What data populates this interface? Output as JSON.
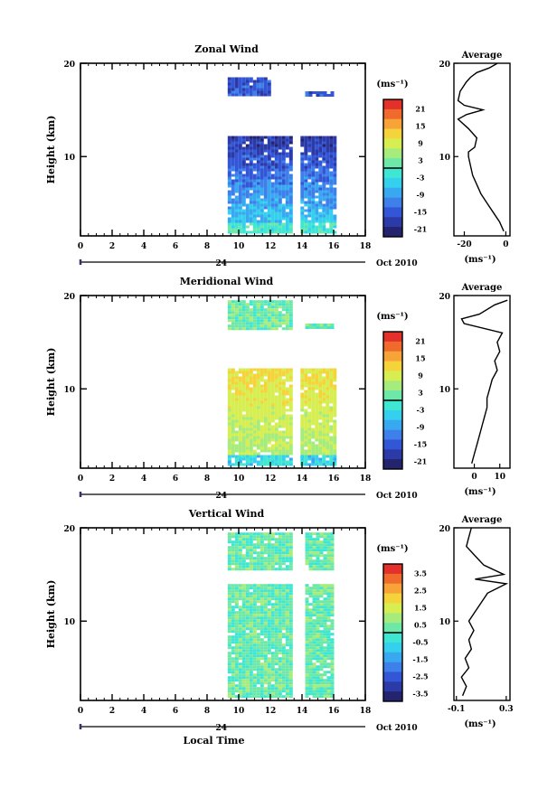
{
  "colorbar": {
    "colors": [
      "#24246e",
      "#2c3aa8",
      "#3356d6",
      "#3e80ea",
      "#38a9f0",
      "#34d0ee",
      "#3fe6d2",
      "#6de8a8",
      "#a6ec7c",
      "#d7ee52",
      "#f4d43a",
      "#f7a338",
      "#f06a2e",
      "#e3302a"
    ]
  },
  "chart_data": [
    {
      "type": "heatmap",
      "title": "Zonal Wind",
      "ylabel": "Height (km)",
      "xlim": [
        0,
        18
      ],
      "ylim": [
        1.5,
        20
      ],
      "xticks": [
        "0",
        "2",
        "4",
        "6",
        "8",
        "10",
        "12",
        "14",
        "16",
        "18"
      ],
      "yticks": [
        "20",
        "10"
      ],
      "date_axis": {
        "label": "24",
        "right_label": "Oct 2010"
      },
      "colorbar": {
        "unit": "(ms⁻¹)",
        "ticks": [
          "21",
          "15",
          "9",
          "3",
          "-3",
          "-9",
          "-15",
          "-21"
        ],
        "range": [
          -24,
          24
        ]
      },
      "data_blocks": [
        {
          "x": [
            9.3,
            13.2
          ],
          "y": [
            1.8,
            12.2
          ]
        },
        {
          "x": [
            13.9,
            16.0
          ],
          "y": [
            1.8,
            12.2
          ]
        },
        {
          "x": [
            9.3,
            12.0
          ],
          "y": [
            16.5,
            18.5
          ]
        },
        {
          "x": [
            14.2,
            16.0
          ],
          "y": [
            16.5,
            17.0
          ]
        }
      ],
      "profile": {
        "title": "Average",
        "xlim": [
          -25,
          2
        ],
        "xticks": [
          "-20",
          "0"
        ],
        "xunit": "(ms⁻¹)",
        "yticks": [
          "20",
          "10"
        ],
        "points": [
          [
            -1,
            2
          ],
          [
            -3,
            3
          ],
          [
            -6,
            4
          ],
          [
            -9,
            5
          ],
          [
            -12,
            6
          ],
          [
            -14,
            7
          ],
          [
            -16,
            8
          ],
          [
            -17,
            9
          ],
          [
            -18,
            10
          ],
          [
            -18,
            10.5
          ],
          [
            -15,
            11
          ],
          [
            -14,
            12
          ],
          [
            -18,
            13
          ],
          [
            -23,
            14
          ],
          [
            -19,
            14.5
          ],
          [
            -11,
            15
          ],
          [
            -20,
            15.5
          ],
          [
            -23,
            16
          ],
          [
            -22,
            17
          ],
          [
            -19,
            18
          ],
          [
            -17,
            18.5
          ],
          [
            -14,
            19
          ],
          [
            -8,
            19.5
          ],
          [
            -4,
            20
          ]
        ]
      }
    },
    {
      "type": "heatmap",
      "title": "Meridional Wind",
      "ylabel": "Height (km)",
      "xlim": [
        0,
        18
      ],
      "ylim": [
        1.5,
        20
      ],
      "xticks": [
        "0",
        "2",
        "4",
        "6",
        "8",
        "10",
        "12",
        "14",
        "16",
        "18"
      ],
      "yticks": [
        "20",
        "10"
      ],
      "date_axis": {
        "label": "24",
        "right_label": "Oct 2010"
      },
      "colorbar": {
        "unit": "(ms⁻¹)",
        "ticks": [
          "21",
          "15",
          "9",
          "3",
          "-3",
          "-9",
          "-15",
          "-21"
        ],
        "range": [
          -24,
          24
        ]
      },
      "data_blocks": [
        {
          "x": [
            9.3,
            13.2
          ],
          "y": [
            1.8,
            12.2
          ]
        },
        {
          "x": [
            13.9,
            16.0
          ],
          "y": [
            1.8,
            12.2
          ]
        },
        {
          "x": [
            9.3,
            13.2
          ],
          "y": [
            16.5,
            19.5
          ]
        },
        {
          "x": [
            14.2,
            16.0
          ],
          "y": [
            16.5,
            17.0
          ]
        }
      ],
      "profile": {
        "title": "Average",
        "xlim": [
          -8,
          14
        ],
        "xticks": [
          "0",
          "10"
        ],
        "xunit": "(ms⁻¹)",
        "yticks": [
          "20",
          "10"
        ],
        "points": [
          [
            -1,
            2
          ],
          [
            0,
            3
          ],
          [
            1,
            4
          ],
          [
            2,
            5
          ],
          [
            3,
            6
          ],
          [
            4,
            7
          ],
          [
            5,
            8
          ],
          [
            5,
            9
          ],
          [
            6,
            10
          ],
          [
            7,
            11
          ],
          [
            9,
            12
          ],
          [
            8,
            13
          ],
          [
            10,
            14
          ],
          [
            9,
            15
          ],
          [
            11,
            16
          ],
          [
            -4,
            17
          ],
          [
            -5,
            17.5
          ],
          [
            2,
            18
          ],
          [
            8,
            19
          ],
          [
            13,
            19.5
          ]
        ]
      }
    },
    {
      "type": "heatmap",
      "title": "Vertical Wind",
      "ylabel": "Height (km)",
      "xlabel": "Local Time",
      "xlim": [
        0,
        18
      ],
      "ylim": [
        1.5,
        20
      ],
      "xticks": [
        "0",
        "2",
        "4",
        "6",
        "8",
        "10",
        "12",
        "14",
        "16",
        "18"
      ],
      "yticks": [
        "20",
        "10"
      ],
      "date_axis": {
        "label": "24",
        "right_label": "Oct 2010"
      },
      "colorbar": {
        "unit": "(ms⁻¹)",
        "ticks": [
          "3.5",
          "2.5",
          "1.5",
          "0.5",
          "-0.5",
          "-1.5",
          "-2.5",
          "-3.5"
        ],
        "range": [
          -4,
          4
        ]
      },
      "data_blocks": [
        {
          "x": [
            9.3,
            13.2
          ],
          "y": [
            1.8,
            19.5
          ]
        },
        {
          "x": [
            14.2,
            16.0
          ],
          "y": [
            1.8,
            19.5
          ]
        }
      ],
      "profile": {
        "title": "Average",
        "xlim": [
          -0.12,
          0.33
        ],
        "xticks": [
          "-0.1",
          "0.3"
        ],
        "xunit": "(ms⁻¹)",
        "yticks": [
          "20",
          "10"
        ],
        "points": [
          [
            -0.05,
            2
          ],
          [
            -0.02,
            3
          ],
          [
            -0.06,
            4
          ],
          [
            0.0,
            5
          ],
          [
            -0.03,
            6
          ],
          [
            0.02,
            7
          ],
          [
            0.0,
            8
          ],
          [
            0.04,
            9
          ],
          [
            0.0,
            10
          ],
          [
            0.05,
            11
          ],
          [
            0.1,
            12
          ],
          [
            0.15,
            13
          ],
          [
            0.3,
            14
          ],
          [
            0.05,
            14.5
          ],
          [
            0.28,
            15
          ],
          [
            0.12,
            16
          ],
          [
            0.05,
            17
          ],
          [
            -0.02,
            18
          ],
          [
            0.0,
            19
          ],
          [
            0.02,
            20
          ]
        ]
      }
    }
  ]
}
